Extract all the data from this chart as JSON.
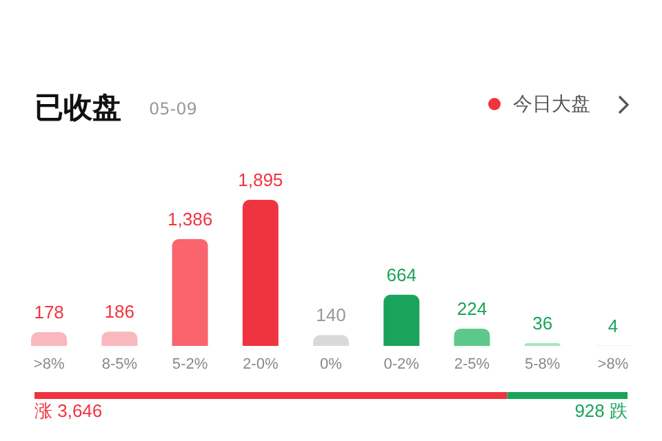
{
  "chart_data": [
    {
      "type": "bar",
      "title": "已收盘",
      "subtitle": "05-09",
      "annotations": [
        "今日大盘"
      ],
      "categories": [
        ">8%",
        "8-5%",
        "5-2%",
        "2-0%",
        "0%",
        "0-2%",
        "2-5%",
        "5-8%",
        ">8%"
      ],
      "values": [
        178,
        186,
        1386,
        1895,
        140,
        664,
        224,
        36,
        4
      ],
      "value_labels": [
        "178",
        "186",
        "1,386",
        "1,895",
        "140",
        "664",
        "224",
        "36",
        "4"
      ],
      "colors": [
        "#f8b8bd",
        "#f8b8bd",
        "#f9646d",
        "#f0343f",
        "#d9d9d9",
        "#1aa35a",
        "#5cc98a",
        "#a9e2c2",
        "#c9eed9"
      ],
      "tick_labels": "x"
    },
    {
      "type": "bar",
      "orientation": "horizontal",
      "stacked": true,
      "categories": [
        null
      ],
      "tick_labels": false,
      "series": [
        {
          "color": "#f0343f",
          "values": [
            3646
          ],
          "value_labels": [
            "涨 3,646"
          ]
        },
        {
          "color": "#1aa35a",
          "values": [
            928
          ],
          "value_labels": [
            "928 跌"
          ]
        }
      ]
    }
  ]
}
